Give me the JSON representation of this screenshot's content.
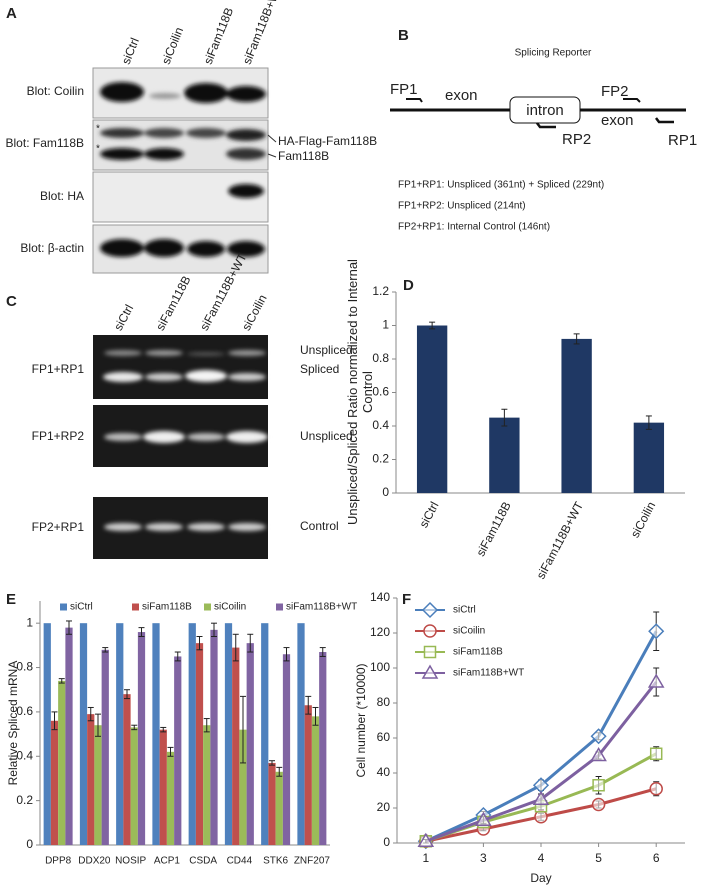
{
  "panel_labels": [
    "A",
    "B",
    "C",
    "D",
    "E",
    "F"
  ],
  "blots": {
    "lanes": [
      "siCtrl",
      "siCoilin",
      "siFam118B",
      "siFam118B+WT"
    ],
    "rows": [
      "Blot: Coilin",
      "Blot: Fam118B",
      "Blot: HA",
      "Blot: β-actin"
    ],
    "bands": [
      "HA-Flag-Fam118B",
      "Fam118B"
    ],
    "asterisks": [
      "*",
      "*"
    ]
  },
  "reporter": {
    "title": "Splicing Reporter",
    "primers": [
      "FP1",
      "FP2",
      "RP2",
      "RP1"
    ],
    "exons": [
      "exon",
      "exon"
    ],
    "intron": "intron",
    "products": [
      "FP1+RP1: Unspliced (361nt) + Spliced (229nt)",
      "FP1+RP2: Unspliced (214nt)",
      "FP2+RP1: Internal Control (146nt)"
    ]
  },
  "gels": {
    "lanes": [
      "siCtrl",
      "siFam118B",
      "siFam118B+WT",
      "siCoilin"
    ],
    "rows": [
      "FP1+RP1",
      "FP1+RP2",
      "FP2+RP1"
    ],
    "bands": [
      "Unspliced",
      "Spliced",
      "Unspliced",
      "Control"
    ]
  },
  "chart_data": [
    {
      "type": "bar",
      "y_label": "Unspliced/Spliced Ratio normalized to Internal Control",
      "categories": [
        "siCtrl",
        "siFam118B",
        "siFam118B+WT",
        "siCoilin"
      ],
      "values": [
        1.0,
        0.45,
        0.92,
        0.42
      ],
      "errors": [
        0.02,
        0.05,
        0.03,
        0.04
      ],
      "color": "#1f3864",
      "ylim": [
        0,
        1.2
      ],
      "yticks": [
        0,
        0.2,
        0.4,
        0.6,
        0.8,
        1,
        1.2
      ],
      "legend": "none"
    },
    {
      "type": "bar",
      "y_label": "Relative Spliced mRNA",
      "categories": [
        "DPP8",
        "DDX20",
        "NOSIP",
        "ACP1",
        "CSDA",
        "CD44",
        "STK6",
        "ZNF207"
      ],
      "series": [
        {
          "name": "siCtrl",
          "color": "#4f81bd",
          "values": [
            1,
            1,
            1,
            1,
            1,
            1,
            1,
            1
          ]
        },
        {
          "name": "siFam118B",
          "color": "#c0504d",
          "values": [
            0.56,
            0.59,
            0.68,
            0.52,
            0.91,
            0.89,
            0.37,
            0.63
          ],
          "errors": [
            0.04,
            0.03,
            0.02,
            0.01,
            0.03,
            0.06,
            0.01,
            0.04
          ]
        },
        {
          "name": "siCoilin",
          "color": "#9bbb59",
          "values": [
            0.74,
            0.54,
            0.53,
            0.42,
            0.54,
            0.52,
            0.33,
            0.58
          ],
          "errors": [
            0.01,
            0.05,
            0.01,
            0.02,
            0.03,
            0.15,
            0.02,
            0.04
          ]
        },
        {
          "name": "siFam118B+WT",
          "color": "#8064a2",
          "values": [
            0.98,
            0.88,
            0.96,
            0.85,
            0.97,
            0.91,
            0.86,
            0.87
          ],
          "errors": [
            0.03,
            0.01,
            0.02,
            0.02,
            0.03,
            0.04,
            0.03,
            0.02
          ]
        }
      ],
      "ylim": [
        0,
        1.1
      ],
      "yticks": [
        0,
        0.2,
        0.4,
        0.6,
        0.8,
        1
      ],
      "legend": "top"
    },
    {
      "type": "line",
      "y_label": "Cell number (*10000)",
      "x_label": "Day",
      "categories": [
        "1",
        "3",
        "4",
        "5",
        "6"
      ],
      "series": [
        {
          "name": "siCtrl",
          "color": "#4a7ebb",
          "marker": "diamond",
          "values": [
            1,
            16,
            33,
            61,
            121
          ],
          "errors": [
            1,
            2,
            3,
            2,
            11
          ]
        },
        {
          "name": "siCoilin",
          "color": "#be4b48",
          "marker": "circle",
          "values": [
            1,
            8,
            15,
            22,
            31
          ],
          "errors": [
            1,
            1,
            2,
            2,
            4
          ]
        },
        {
          "name": "siFam118B",
          "color": "#98b954",
          "marker": "square",
          "values": [
            1,
            12,
            21,
            33,
            51
          ],
          "errors": [
            1,
            1,
            2,
            5,
            4
          ]
        },
        {
          "name": "siFam118B+WT",
          "color": "#7d60a0",
          "marker": "triangle",
          "values": [
            1,
            13,
            25,
            50,
            92
          ],
          "errors": [
            1,
            2,
            3,
            2,
            8
          ]
        }
      ],
      "ylim": [
        0,
        140
      ],
      "yticks": [
        0,
        20,
        40,
        60,
        80,
        100,
        120,
        140
      ],
      "legend": "top-left"
    }
  ]
}
